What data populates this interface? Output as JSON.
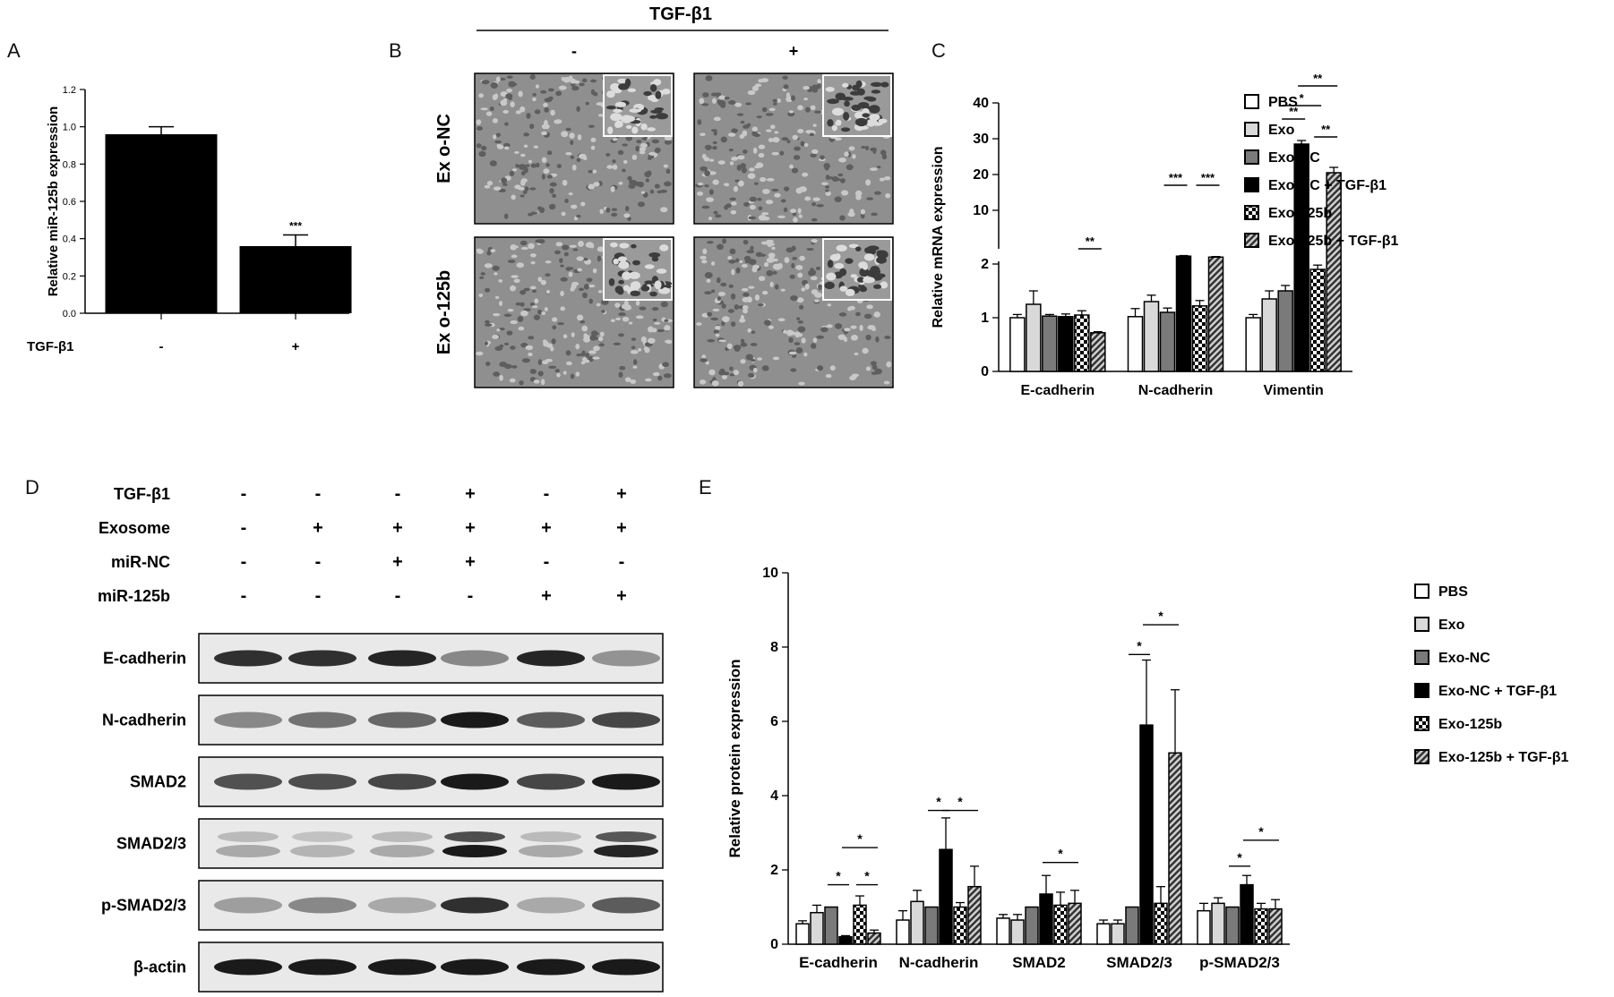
{
  "panels": {
    "A": {
      "letter": "A"
    },
    "B": {
      "letter": "B",
      "header": "TGF-β1",
      "columns": [
        "-",
        "+"
      ],
      "rows": [
        "Ex o-NC",
        "Ex o-125b"
      ]
    },
    "C": {
      "letter": "C"
    },
    "D": {
      "letter": "D",
      "conditions": [
        {
          "label": "TGF-β1",
          "values": [
            "-",
            "-",
            "-",
            "+",
            "-",
            "+"
          ]
        },
        {
          "label": "Exosome",
          "values": [
            "-",
            "+",
            "+",
            "+",
            "+",
            "+"
          ]
        },
        {
          "label": "miR-NC",
          "values": [
            "-",
            "-",
            "+",
            "+",
            "-",
            "-"
          ]
        },
        {
          "label": "miR-125b",
          "values": [
            "-",
            "-",
            "-",
            "-",
            "+",
            "+"
          ]
        }
      ],
      "blots": [
        {
          "label": "E-cadherin",
          "intensity": [
            0.85,
            0.85,
            0.9,
            0.45,
            0.9,
            0.4
          ]
        },
        {
          "label": "N-cadherin",
          "intensity": [
            0.45,
            0.55,
            0.6,
            0.95,
            0.65,
            0.75
          ]
        },
        {
          "label": "SMAD2",
          "intensity": [
            0.7,
            0.72,
            0.75,
            0.95,
            0.75,
            0.95
          ]
        },
        {
          "label": "SMAD2/3",
          "intensity": [
            0.3,
            0.25,
            0.3,
            0.95,
            0.3,
            0.9
          ]
        },
        {
          "label": "p-SMAD2/3",
          "intensity": [
            0.35,
            0.45,
            0.3,
            0.85,
            0.3,
            0.65
          ]
        },
        {
          "label": "β-actin",
          "intensity": [
            0.95,
            0.95,
            0.95,
            0.95,
            0.95,
            0.95
          ]
        }
      ]
    },
    "E": {
      "letter": "E"
    }
  },
  "colors": {
    "black": "#000000",
    "dark_gray": "#7a7a7a",
    "light_gray": "#d9d9d9",
    "white": "#ffffff"
  },
  "chart_data": [
    {
      "panel": "A",
      "type": "bar",
      "categories": [
        "-",
        "+"
      ],
      "category_axis_label": "TGF-β1",
      "values": [
        0.96,
        0.36
      ],
      "errors": [
        0.04,
        0.06
      ],
      "annotations": [
        "",
        "***"
      ],
      "ylabel": "Relative miR-125b expression",
      "ylim": [
        0,
        1.2
      ],
      "yticks": [
        "0.0",
        "0.2",
        "0.4",
        "0.6",
        "0.8",
        "1.0",
        "1.2"
      ]
    },
    {
      "panel": "C",
      "type": "bar",
      "categories": [
        "E-cadherin",
        "N-cadherin",
        "Vimentin"
      ],
      "ylabel": "Relative mRNA expression",
      "axis_break": {
        "lower": [
          0,
          2
        ],
        "upper": [
          0,
          40
        ]
      },
      "yticks_lower": [
        "0",
        "1",
        "2"
      ],
      "yticks_upper": [
        "10",
        "20",
        "30",
        "40"
      ],
      "legend_position": "right",
      "series": [
        {
          "name": "PBS",
          "values": [
            1.0,
            1.02,
            1.0
          ],
          "errors": [
            0.06,
            0.15,
            0.06
          ]
        },
        {
          "name": "Exo",
          "values": [
            1.25,
            1.3,
            1.35
          ],
          "errors": [
            0.25,
            0.12,
            0.15
          ]
        },
        {
          "name": "Exo-NC",
          "values": [
            1.03,
            1.1,
            1.5
          ],
          "errors": [
            0.03,
            0.08,
            0.1
          ]
        },
        {
          "name": "Exo-NC + TGF-β1",
          "values": [
            1.02,
            6.0,
            28.5
          ],
          "errors": [
            0.05,
            0.3,
            1.0
          ]
        },
        {
          "name": "Exo-125b",
          "values": [
            1.05,
            1.22,
            1.9
          ],
          "errors": [
            0.08,
            0.1,
            0.08
          ]
        },
        {
          "name": "Exo-125b + TGF-β1",
          "values": [
            0.72,
            5.5,
            20.5
          ],
          "errors": [
            0.02,
            0.3,
            1.5
          ]
        }
      ],
      "annotations": [
        "**",
        "***",
        "***",
        "*",
        "**",
        "**",
        "**"
      ]
    },
    {
      "panel": "E",
      "type": "bar",
      "categories": [
        "E-cadherin",
        "N-cadherin",
        "SMAD2",
        "SMAD2/3",
        "p-SMAD2/3"
      ],
      "ylabel": "Relative protein expression",
      "ylim": [
        0,
        10
      ],
      "yticks": [
        "0",
        "2",
        "4",
        "6",
        "8",
        "10"
      ],
      "legend_position": "right",
      "series": [
        {
          "name": "PBS",
          "values": [
            0.55,
            0.65,
            0.7,
            0.55,
            0.9
          ],
          "errors": [
            0.08,
            0.25,
            0.1,
            0.1,
            0.2
          ]
        },
        {
          "name": "Exo",
          "values": [
            0.85,
            1.15,
            0.65,
            0.55,
            1.1
          ],
          "errors": [
            0.2,
            0.3,
            0.15,
            0.1,
            0.15
          ]
        },
        {
          "name": "Exo-NC",
          "values": [
            1.0,
            1.0,
            1.0,
            1.0,
            1.0
          ],
          "errors": [
            0,
            0,
            0,
            0,
            0
          ]
        },
        {
          "name": "Exo-NC + TGF-β1",
          "values": [
            0.2,
            2.55,
            1.35,
            5.9,
            1.6
          ],
          "errors": [
            0.03,
            0.85,
            0.5,
            1.75,
            0.25
          ]
        },
        {
          "name": "Exo-125b",
          "values": [
            1.05,
            1.0,
            1.05,
            1.1,
            0.95
          ],
          "errors": [
            0.25,
            0.12,
            0.35,
            0.45,
            0.15
          ]
        },
        {
          "name": "Exo-125b + TGF-β1",
          "values": [
            0.3,
            1.55,
            1.1,
            5.15,
            0.95
          ],
          "errors": [
            0.08,
            0.55,
            0.35,
            1.7,
            0.25
          ]
        }
      ],
      "annotations": [
        "*",
        "*",
        "*",
        "*",
        "*",
        "*",
        "*",
        "*",
        "*",
        "*"
      ]
    }
  ]
}
